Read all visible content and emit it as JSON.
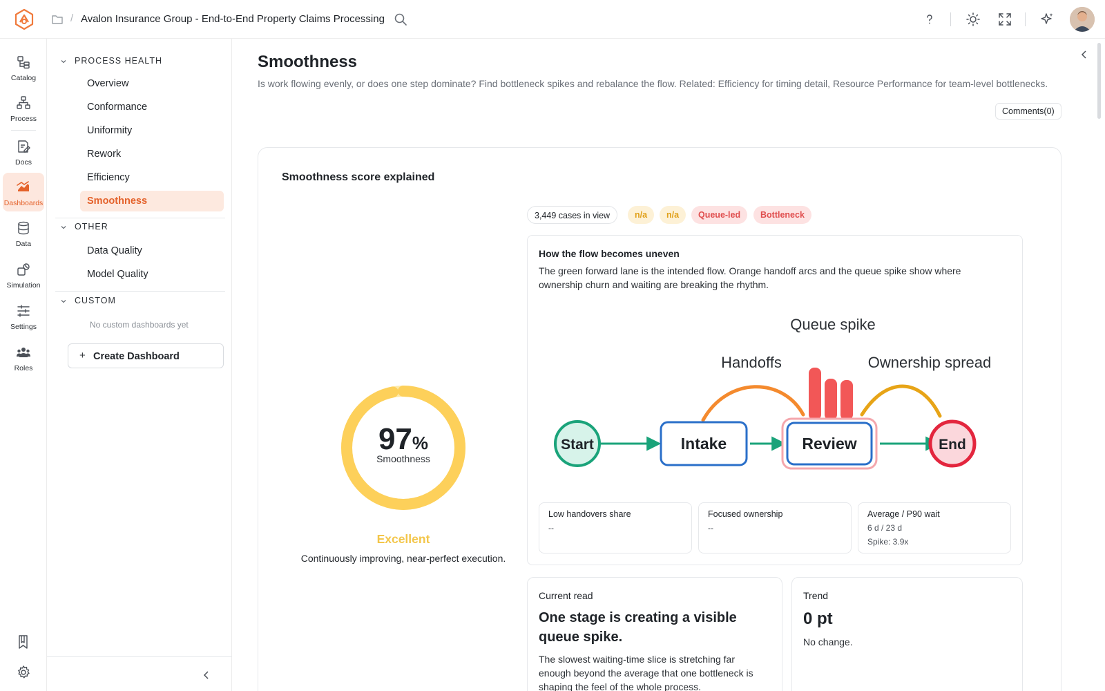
{
  "header": {
    "breadcrumb_sep": "/",
    "project_title": "Avalon Insurance Group - End-to-End Property Claims Processing"
  },
  "rail": {
    "items": [
      {
        "label": "Catalog",
        "icon": "catalog-icon"
      },
      {
        "label": "Process",
        "icon": "process-icon"
      },
      {
        "label": "Docs",
        "icon": "docs-icon"
      },
      {
        "label": "Dashboards",
        "icon": "dashboards-icon",
        "active": true
      },
      {
        "label": "Data",
        "icon": "data-icon"
      },
      {
        "label": "Simulation",
        "icon": "simulation-icon"
      },
      {
        "label": "Settings",
        "icon": "settings-sliders-icon"
      },
      {
        "label": "Roles",
        "icon": "roles-icon"
      }
    ]
  },
  "sidebar": {
    "sections": [
      {
        "label": "PROCESS HEALTH",
        "items": [
          "Overview",
          "Conformance",
          "Uniformity",
          "Rework",
          "Efficiency",
          "Smoothness"
        ]
      },
      {
        "label": "OTHER",
        "items": [
          "Data Quality",
          "Model Quality"
        ]
      },
      {
        "label": "CUSTOM",
        "items": []
      }
    ],
    "active_item": "Smoothness",
    "custom_empty": "No custom dashboards yet",
    "create_button": "Create Dashboard",
    "create_plus": "+"
  },
  "page": {
    "title": "Smoothness",
    "description": "Is work flowing evenly, or does one step dominate? Find bottleneck spikes and rebalance the flow. Related: Efficiency for timing detail, Resource Performance for team-level bottlenecks.",
    "comments_button": "Comments(0)"
  },
  "score_card": {
    "title": "Smoothness score explained",
    "score": 97,
    "score_value": "97",
    "score_unit": "%",
    "score_label": "Smoothness",
    "rating": "Excellent",
    "rating_desc": "Continuously improving, near-perfect execution.",
    "colors": {
      "gauge": "#fdd05a",
      "gauge_track": "#fde9a8",
      "rating": "#f3c64a"
    }
  },
  "chips": {
    "cases": "3,449 cases in view",
    "na_1": "n/a",
    "na_2": "n/a",
    "queue_led": "Queue-led",
    "bottleneck": "Bottleneck"
  },
  "flow": {
    "title": "How the flow becomes uneven",
    "description": "The green forward lane is the intended flow. Orange handoff arcs and the queue spike show where ownership churn and waiting are breaking the rhythm.",
    "labels": {
      "queue_spike": "Queue spike",
      "handoffs": "Handoffs",
      "ownership_spread": "Ownership spread"
    },
    "nodes": {
      "start": "Start",
      "intake": "Intake",
      "review": "Review",
      "end": "End"
    },
    "colors": {
      "lane": "#1aa37a",
      "handoff": "#f48a2e",
      "ownership": "#e7a417",
      "spike": "#f25757"
    }
  },
  "metrics": [
    {
      "label": "Low handovers share",
      "value": "--"
    },
    {
      "label": "Focused ownership",
      "value": "--"
    },
    {
      "label": "Average / P90 wait",
      "value": "6 d / 23 d",
      "sub": "Spike: 3.9x"
    }
  ],
  "current_read": {
    "label": "Current read",
    "headline": "One stage is creating a visible queue spike.",
    "text": "The slowest waiting-time slice is stretching far enough beyond the average that one bottleneck is shaping the feel of the whole process."
  },
  "trend": {
    "label": "Trend",
    "value": "0 pt",
    "note": "No change."
  }
}
